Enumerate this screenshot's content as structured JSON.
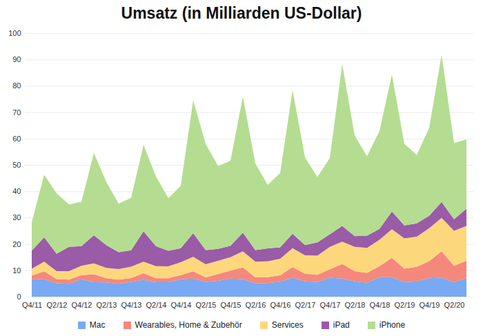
{
  "chart_data": {
    "type": "area",
    "title": "Umsatz (in Milliarden US-Dollar)",
    "stacked": true,
    "grid": true,
    "legend": "bottom",
    "categories": [
      "Q4/11",
      null,
      "Q2/12",
      null,
      "Q4/12",
      null,
      "Q2/13",
      null,
      "Q4/13",
      null,
      "Q2/14",
      null,
      "Q4/14",
      null,
      "Q2/15",
      null,
      "Q4/15",
      null,
      "Q2/16",
      null,
      "Q4/16",
      null,
      "Q2/17",
      null,
      "Q4/17",
      null,
      "Q2/18",
      null,
      "Q4/18",
      null,
      "Q2/19",
      null,
      "Q4/19",
      null,
      "Q2/20",
      null
    ],
    "ylim": [
      0,
      100
    ],
    "yticks": [
      0,
      10,
      20,
      30,
      40,
      50,
      60,
      70,
      80,
      90,
      100
    ],
    "series": [
      {
        "name": "Mac",
        "color": "#78a9f2",
        "values": [
          6.6,
          6.6,
          5.1,
          4.9,
          6.6,
          5.5,
          5.4,
          4.9,
          5.6,
          6.4,
          5.5,
          5.5,
          6.6,
          6.9,
          5.6,
          6.0,
          6.9,
          6.7,
          5.1,
          5.2,
          5.7,
          7.2,
          5.8,
          5.6,
          7.2,
          6.9,
          5.8,
          5.3,
          7.4,
          7.4,
          5.5,
          5.8,
          7.0,
          7.2,
          5.4,
          7.1
        ]
      },
      {
        "name": "Wearables, Home & Zubehör",
        "color": "#f4887c",
        "values": [
          1.4,
          3.0,
          1.6,
          1.6,
          1.6,
          3.0,
          1.6,
          1.6,
          1.5,
          2.5,
          1.5,
          1.5,
          1.6,
          2.7,
          1.7,
          2.6,
          3.0,
          4.4,
          2.2,
          2.2,
          2.4,
          4.0,
          2.9,
          2.7,
          3.2,
          5.5,
          3.9,
          3.7,
          4.2,
          7.3,
          5.1,
          5.5,
          6.5,
          10.0,
          6.3,
          6.5
        ]
      },
      {
        "name": "Services",
        "color": "#fdd77c",
        "values": [
          2.6,
          3.7,
          3.0,
          3.2,
          3.5,
          4.1,
          3.9,
          4.0,
          4.3,
          4.4,
          4.6,
          4.5,
          4.9,
          5.5,
          5.0,
          5.0,
          5.1,
          6.1,
          6.0,
          6.0,
          6.3,
          7.2,
          7.0,
          7.3,
          8.5,
          8.5,
          9.2,
          9.5,
          10.0,
          10.9,
          11.5,
          11.5,
          12.5,
          12.7,
          13.3,
          13.2
        ]
      },
      {
        "name": "iPad",
        "color": "#9a5ba7",
        "values": [
          6.9,
          9.2,
          6.6,
          9.2,
          7.5,
          10.7,
          8.7,
          6.4,
          6.2,
          11.5,
          7.6,
          5.9,
          5.3,
          9.0,
          5.4,
          4.5,
          4.3,
          7.1,
          4.4,
          4.9,
          4.3,
          5.5,
          3.9,
          5.0,
          4.8,
          5.9,
          4.1,
          4.7,
          4.1,
          6.7,
          4.9,
          5.0,
          4.7,
          6.0,
          4.4,
          6.6
        ]
      },
      {
        "name": "iPhone",
        "color": "#b4dd91",
        "values": [
          10.8,
          23.8,
          22.9,
          16.1,
          16.8,
          31.2,
          24.0,
          18.4,
          19.9,
          32.8,
          26.4,
          20.0,
          23.7,
          50.5,
          40.3,
          31.5,
          32.2,
          51.6,
          32.9,
          24.1,
          28.2,
          54.5,
          33.3,
          24.8,
          28.9,
          61.5,
          38.1,
          30.1,
          37.2,
          52.0,
          31.0,
          26.0,
          33.3,
          55.9,
          28.9,
          26.3
        ]
      }
    ]
  }
}
